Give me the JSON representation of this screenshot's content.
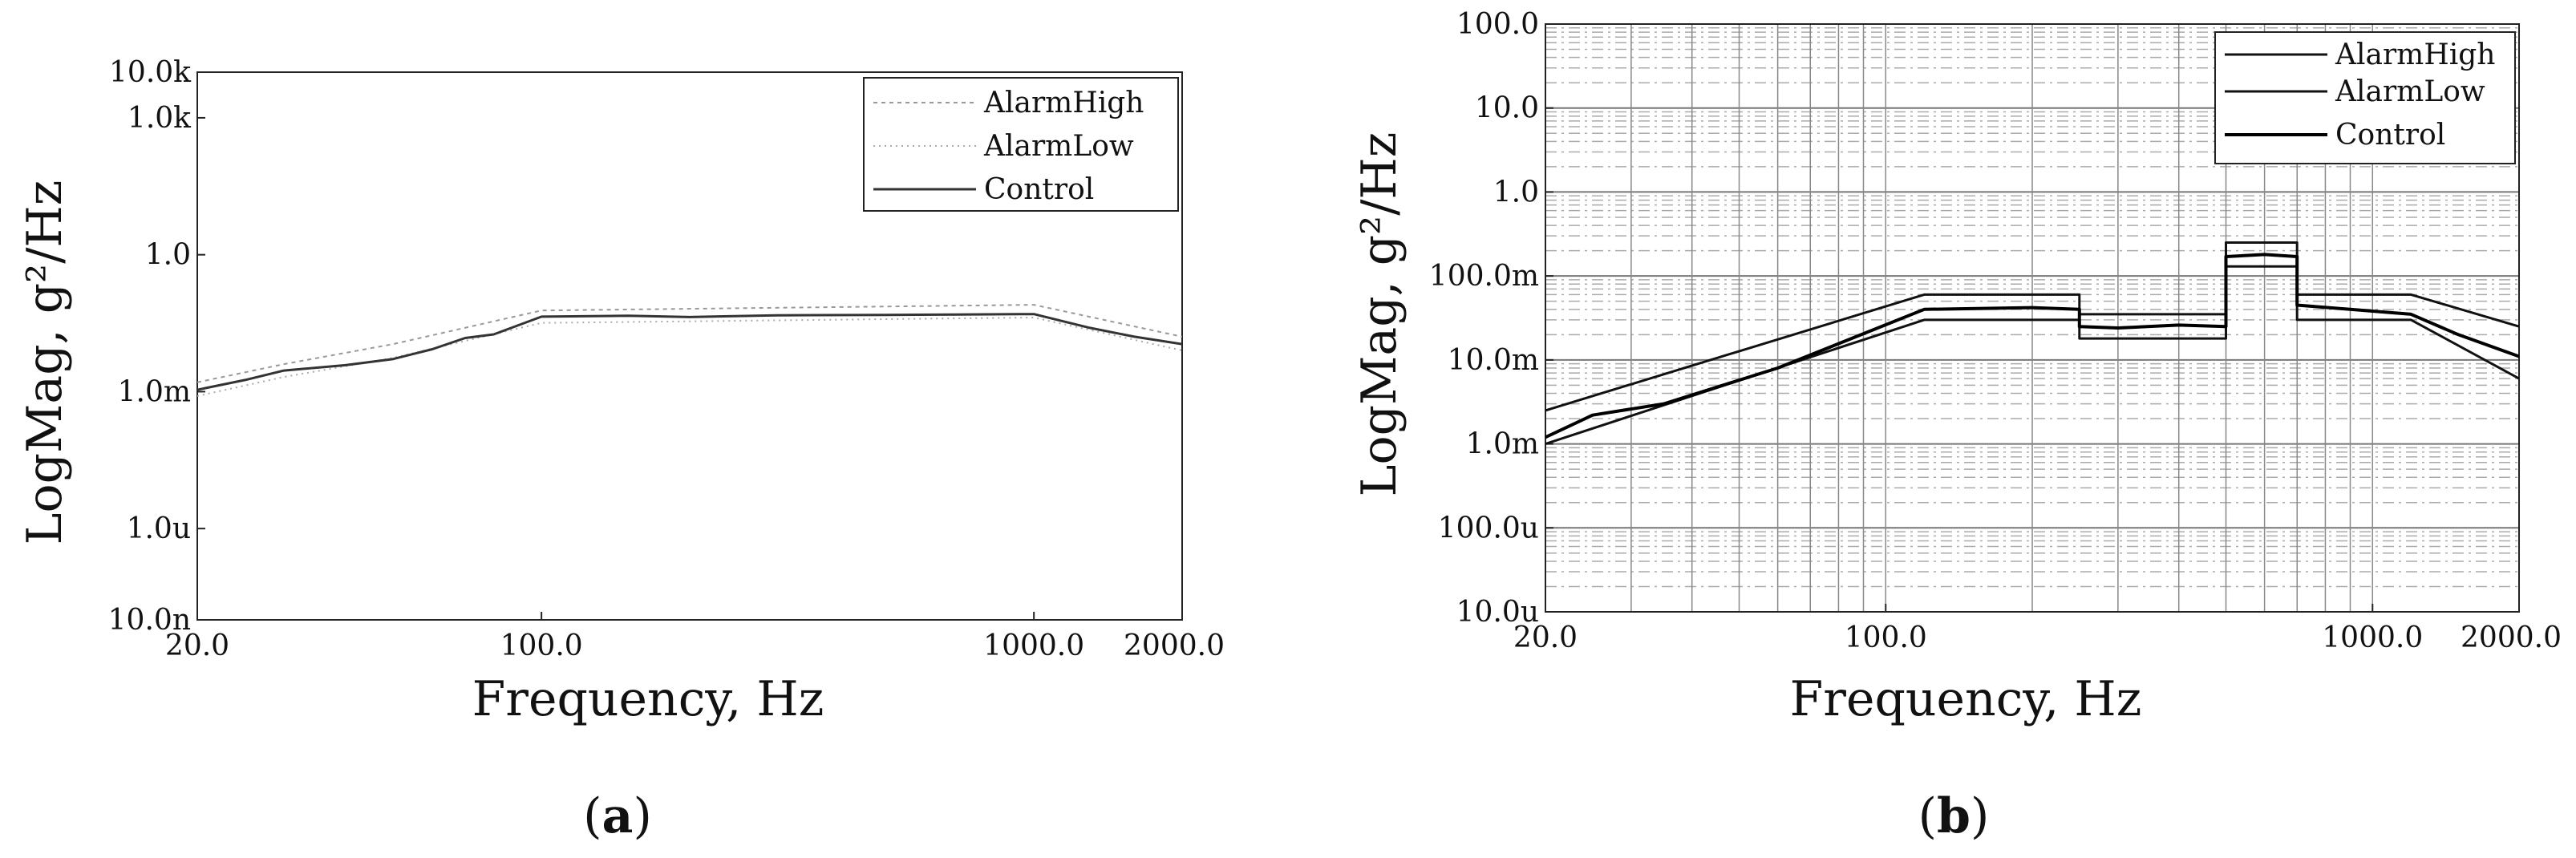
{
  "figure": {
    "caption_a": "a",
    "caption_b": "b",
    "paren_open": "(",
    "paren_close": ")"
  },
  "chart_data": [
    {
      "id": "a",
      "type": "line",
      "title": "",
      "xlabel": "Frequency, Hz",
      "ylabel": "LogMag, g²/Hz",
      "xscale": "log",
      "yscale": "log",
      "xlim": [
        20,
        2000
      ],
      "ylim": [
        1e-08,
        10000
      ],
      "grid": false,
      "legend_position": "top-right",
      "x_ticks": [
        {
          "value": 20,
          "label": "20.0"
        },
        {
          "value": 100,
          "label": "100.0"
        },
        {
          "value": 1000,
          "label": "1000.0"
        },
        {
          "value": 2000,
          "label": "2000.0"
        }
      ],
      "y_ticks": [
        {
          "value": 1e-08,
          "label": "10.0n"
        },
        {
          "value": 1e-06,
          "label": "1.0u"
        },
        {
          "value": 0.001,
          "label": "1.0m"
        },
        {
          "value": 1,
          "label": "1.0"
        },
        {
          "value": 1000,
          "label": "1.0k"
        },
        {
          "value": 10000,
          "label": "10.0k"
        }
      ],
      "legend": [
        "AlarmHigh",
        "AlarmLow",
        "Control"
      ],
      "series": [
        {
          "name": "AlarmHigh",
          "style": "dotted",
          "x": [
            20,
            30,
            50,
            100,
            1000,
            2000
          ],
          "y": [
            0.0016,
            0.004,
            0.011,
            0.06,
            0.08,
            0.016
          ]
        },
        {
          "name": "AlarmLow",
          "style": "dotted",
          "x": [
            20,
            30,
            50,
            100,
            1000,
            2000
          ],
          "y": [
            0.0008,
            0.0021,
            0.0055,
            0.032,
            0.042,
            0.008
          ]
        },
        {
          "name": "Control",
          "style": "solid",
          "x": [
            20,
            25,
            30,
            40,
            50,
            60,
            70,
            80,
            100,
            150,
            200,
            300,
            500,
            700,
            1000,
            1300,
            1600,
            2000
          ],
          "y": [
            0.0011,
            0.0018,
            0.0029,
            0.0038,
            0.0052,
            0.0085,
            0.015,
            0.018,
            0.044,
            0.046,
            0.043,
            0.047,
            0.048,
            0.049,
            0.05,
            0.025,
            0.016,
            0.011
          ]
        }
      ]
    },
    {
      "id": "b",
      "type": "line",
      "title": "",
      "xlabel": "Frequency, Hz",
      "ylabel": "LogMag, g²/Hz",
      "xscale": "log",
      "yscale": "log",
      "xlim": [
        20,
        2000
      ],
      "ylim": [
        1e-05,
        100
      ],
      "grid": true,
      "legend_position": "top-right",
      "x_ticks": [
        {
          "value": 20,
          "label": "20.0"
        },
        {
          "value": 100,
          "label": "100.0"
        },
        {
          "value": 1000,
          "label": "1000.0"
        },
        {
          "value": 2000,
          "label": "2000.0"
        }
      ],
      "y_ticks": [
        {
          "value": 1e-05,
          "label": "10.0u"
        },
        {
          "value": 0.0001,
          "label": "100.0u"
        },
        {
          "value": 0.001,
          "label": "1.0m"
        },
        {
          "value": 0.01,
          "label": "10.0m"
        },
        {
          "value": 0.1,
          "label": "100.0m"
        },
        {
          "value": 1,
          "label": "1.0"
        },
        {
          "value": 10,
          "label": "10.0"
        },
        {
          "value": 100,
          "label": "100.0"
        }
      ],
      "legend": [
        "AlarmHigh",
        "AlarmLow",
        "Control"
      ],
      "series": [
        {
          "name": "AlarmHigh",
          "style": "solid",
          "x": [
            20,
            120,
            250,
            250,
            500,
            500,
            700,
            700,
            1200,
            2000
          ],
          "y": [
            0.0025,
            0.06,
            0.06,
            0.035,
            0.035,
            0.25,
            0.25,
            0.06,
            0.06,
            0.025
          ]
        },
        {
          "name": "AlarmLow",
          "style": "solid",
          "x": [
            20,
            120,
            250,
            250,
            500,
            500,
            700,
            700,
            1200,
            2000
          ],
          "y": [
            0.001,
            0.03,
            0.03,
            0.018,
            0.018,
            0.13,
            0.13,
            0.03,
            0.03,
            0.006
          ]
        },
        {
          "name": "Control",
          "style": "solid",
          "x": [
            20,
            25,
            35,
            60,
            120,
            200,
            250,
            250,
            300,
            400,
            500,
            500,
            600,
            700,
            700,
            900,
            1200,
            1500,
            2000
          ],
          "y": [
            0.0012,
            0.0022,
            0.003,
            0.008,
            0.04,
            0.042,
            0.04,
            0.025,
            0.024,
            0.026,
            0.025,
            0.17,
            0.18,
            0.17,
            0.045,
            0.04,
            0.035,
            0.02,
            0.011
          ]
        }
      ]
    }
  ]
}
